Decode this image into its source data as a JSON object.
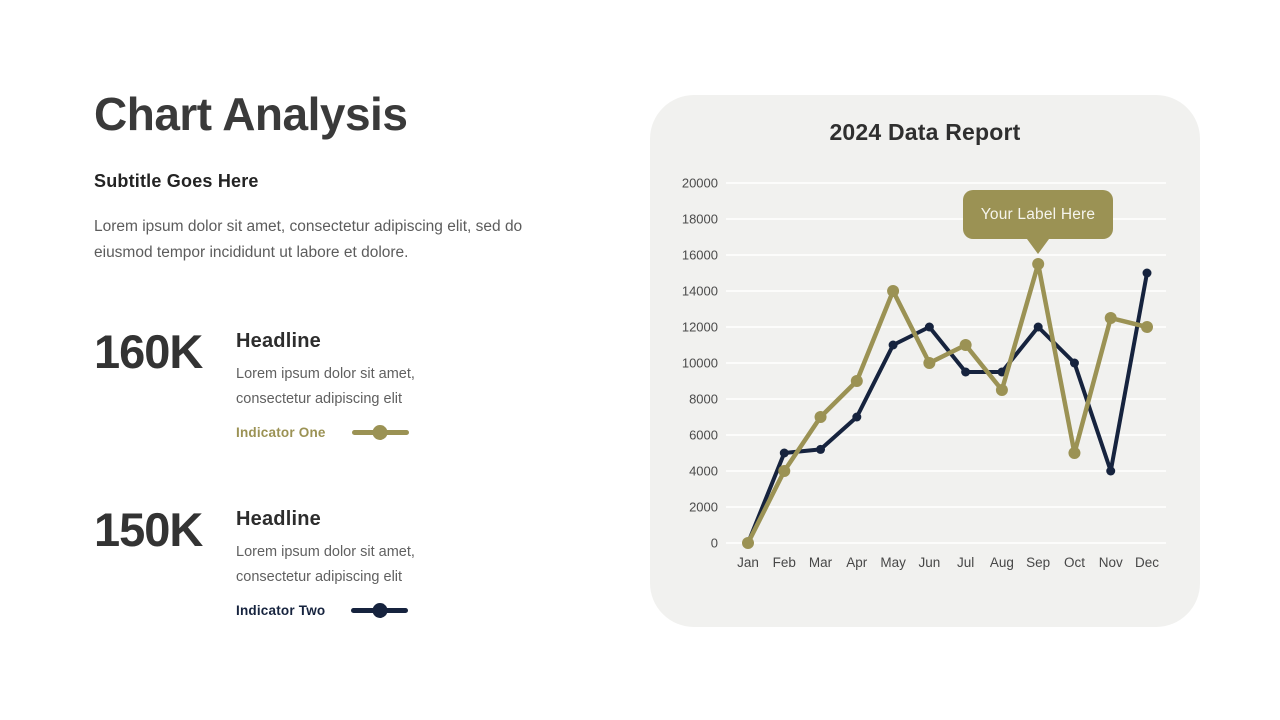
{
  "slide": {
    "title": "Chart Analysis",
    "subtitle": "Subtitle Goes Here",
    "description": "Lorem ipsum dolor sit amet, consectetur adipiscing elit, sed do eiusmod tempor incididunt ut labore et dolore.",
    "stats": [
      {
        "value": "160K",
        "headline": "Headline",
        "text": "Lorem ipsum dolor sit amet, consectetur adipiscing elit",
        "indicator_label": "Indicator One",
        "indicator_color": "#9B9254"
      },
      {
        "value": "150K",
        "headline": "Headline",
        "text": "Lorem ipsum dolor sit amet, consectetur adipiscing elit",
        "indicator_label": "Indicator Two",
        "indicator_color": "#16233E"
      }
    ]
  },
  "chart_card": {
    "title": "2024 Data Report",
    "background": "#F1F1EF",
    "tooltip": {
      "text": "Your Label Here",
      "anchor_series": "Indicator One",
      "anchor_month": "Sep",
      "anchor_value": 15500
    }
  },
  "chart_data": {
    "type": "line",
    "title": "2024 Data Report",
    "categories": [
      "Jan",
      "Feb",
      "Mar",
      "Apr",
      "May",
      "Jun",
      "Jul",
      "Aug",
      "Sep",
      "Oct",
      "Nov",
      "Dec"
    ],
    "series": [
      {
        "name": "Indicator One",
        "color": "#9B9254",
        "values": [
          0,
          4000,
          7000,
          9000,
          14000,
          10000,
          11000,
          8500,
          15500,
          5000,
          12500,
          12000
        ]
      },
      {
        "name": "Indicator Two",
        "color": "#16233E",
        "values": [
          0,
          5000,
          5200,
          7000,
          11000,
          12000,
          9500,
          9500,
          12000,
          10000,
          4000,
          15000
        ]
      }
    ],
    "xlabel": "",
    "ylabel": "",
    "ylim": [
      0,
      20000
    ],
    "ytick_step": 2000,
    "grid": true,
    "grid_color": "#FFFFFF",
    "legend_position": "none"
  }
}
